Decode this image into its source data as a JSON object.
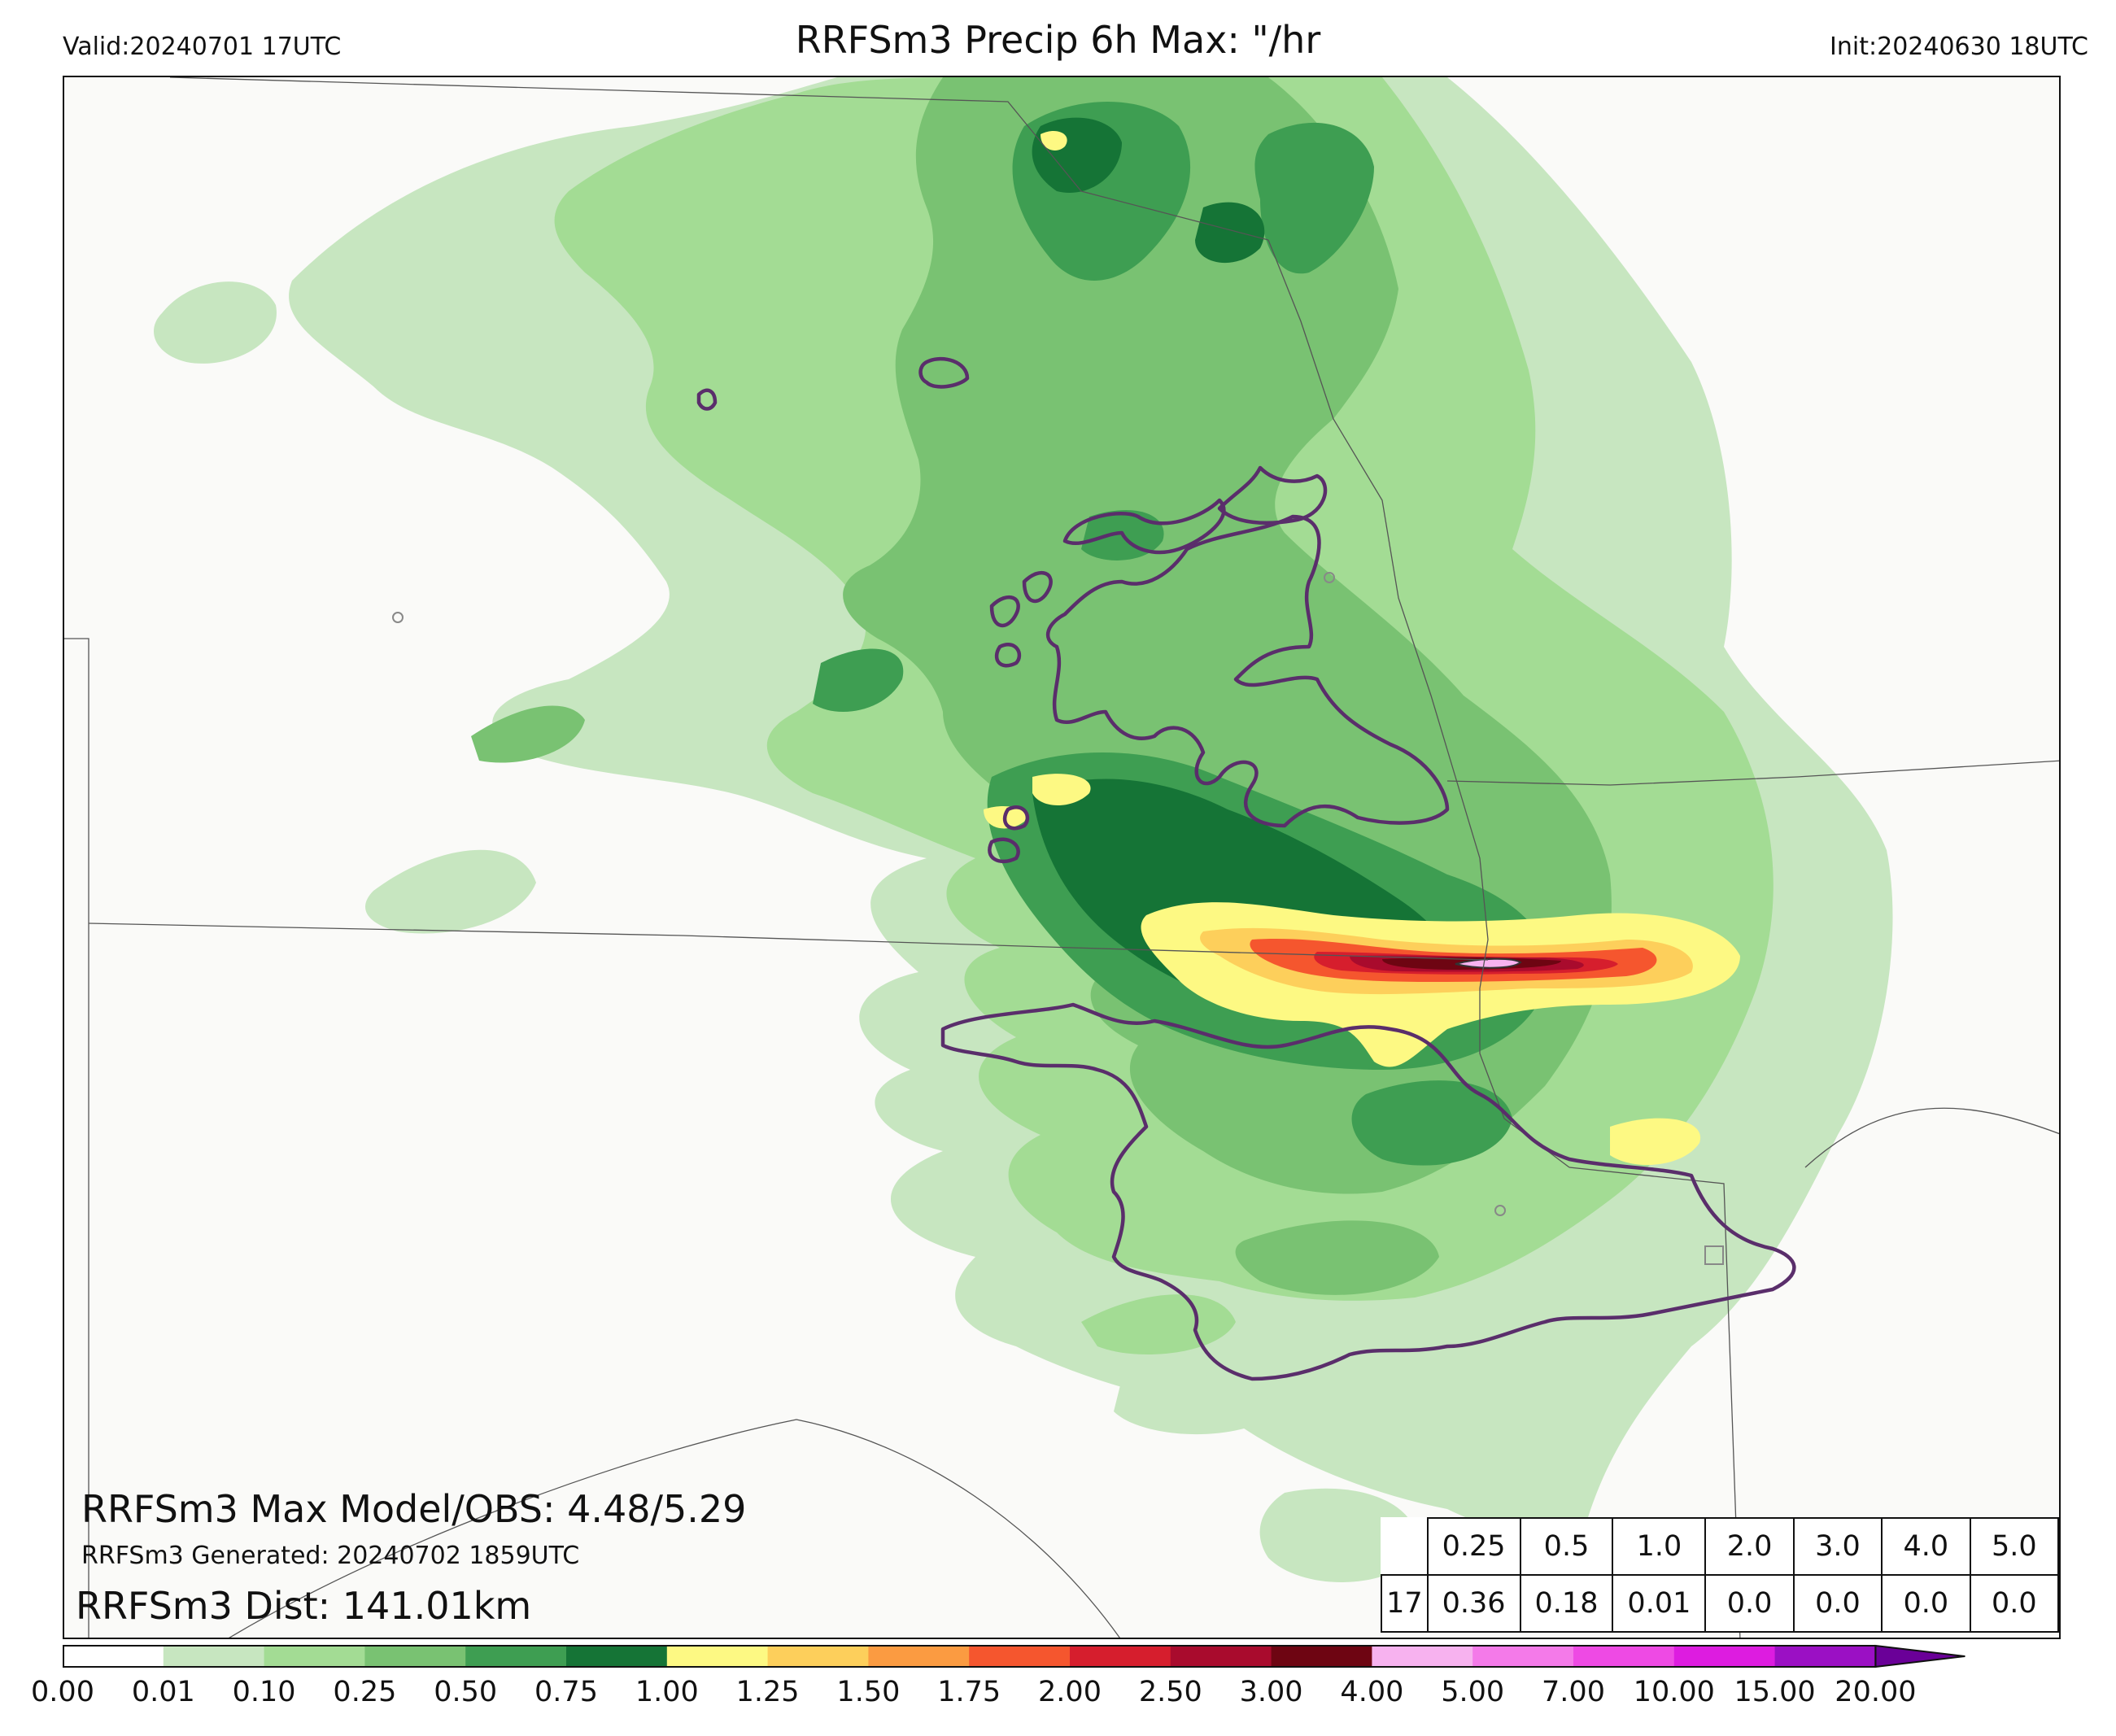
{
  "header": {
    "valid": "Valid:20240701 17UTC",
    "title": "RRFSm3 Precip 6h Max: \"/hr",
    "init": "Init:20240630 18UTC"
  },
  "annotations": {
    "max_model_obs": "RRFSm3 Max Model/OBS: 4.48/5.29",
    "generated": "RRFSm3 Generated: 20240702 1859UTC",
    "distance": "RRFSm3 Dist: 141.01km"
  },
  "stats_table": {
    "thresholds": [
      "0.25",
      "0.5",
      "1.0",
      "2.0",
      "3.0",
      "4.0",
      "5.0"
    ],
    "row_label": "17",
    "values": [
      "0.36",
      "0.18",
      "0.01",
      "0.0",
      "0.0",
      "0.0",
      "0.0"
    ]
  },
  "colorbar": {
    "ticks": [
      "0.00",
      "0.01",
      "0.10",
      "0.25",
      "0.50",
      "0.75",
      "1.00",
      "1.25",
      "1.50",
      "1.75",
      "2.00",
      "2.50",
      "3.00",
      "4.00",
      "5.00",
      "7.00",
      "10.00",
      "15.00",
      "20.00"
    ],
    "colors": [
      "#ffffff",
      "#c7e6c0",
      "#a3dc94",
      "#79c272",
      "#3e9e52",
      "#157436",
      "#fdf983",
      "#fdcf5b",
      "#fb9b41",
      "#f5562e",
      "#d61e2d",
      "#a90b2d",
      "#6e0512",
      "#f7b2ef",
      "#f47ae9",
      "#ee4ae4",
      "#dd1ce0",
      "#9b10c4"
    ],
    "extend_color": "#6a0098"
  },
  "map": {
    "obs_contour_color": "#5a2e6b",
    "boundary_color": "#555555"
  }
}
